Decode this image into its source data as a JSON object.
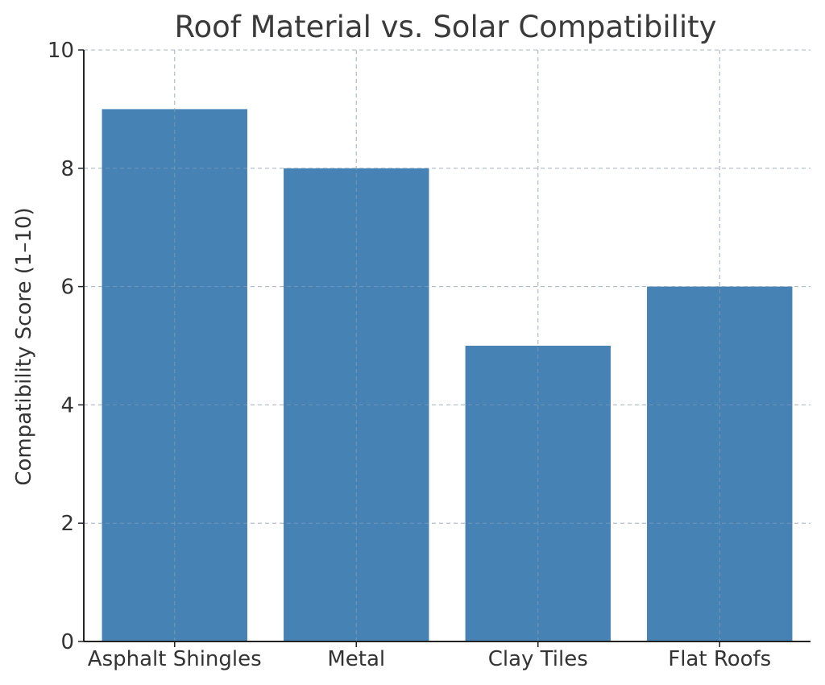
{
  "chart_data": {
    "type": "bar",
    "title": "Roof Material vs. Solar Compatibility",
    "xlabel": "",
    "ylabel": "Compatibility Score (1–10)",
    "categories": [
      "Asphalt Shingles",
      "Metal",
      "Clay Tiles",
      "Flat Roofs"
    ],
    "values": [
      9,
      8,
      5,
      6
    ],
    "ylim": [
      0,
      10
    ],
    "yticks": [
      0,
      2,
      4,
      6,
      8,
      10
    ],
    "grid": true,
    "bar_color": "#4682b4"
  }
}
